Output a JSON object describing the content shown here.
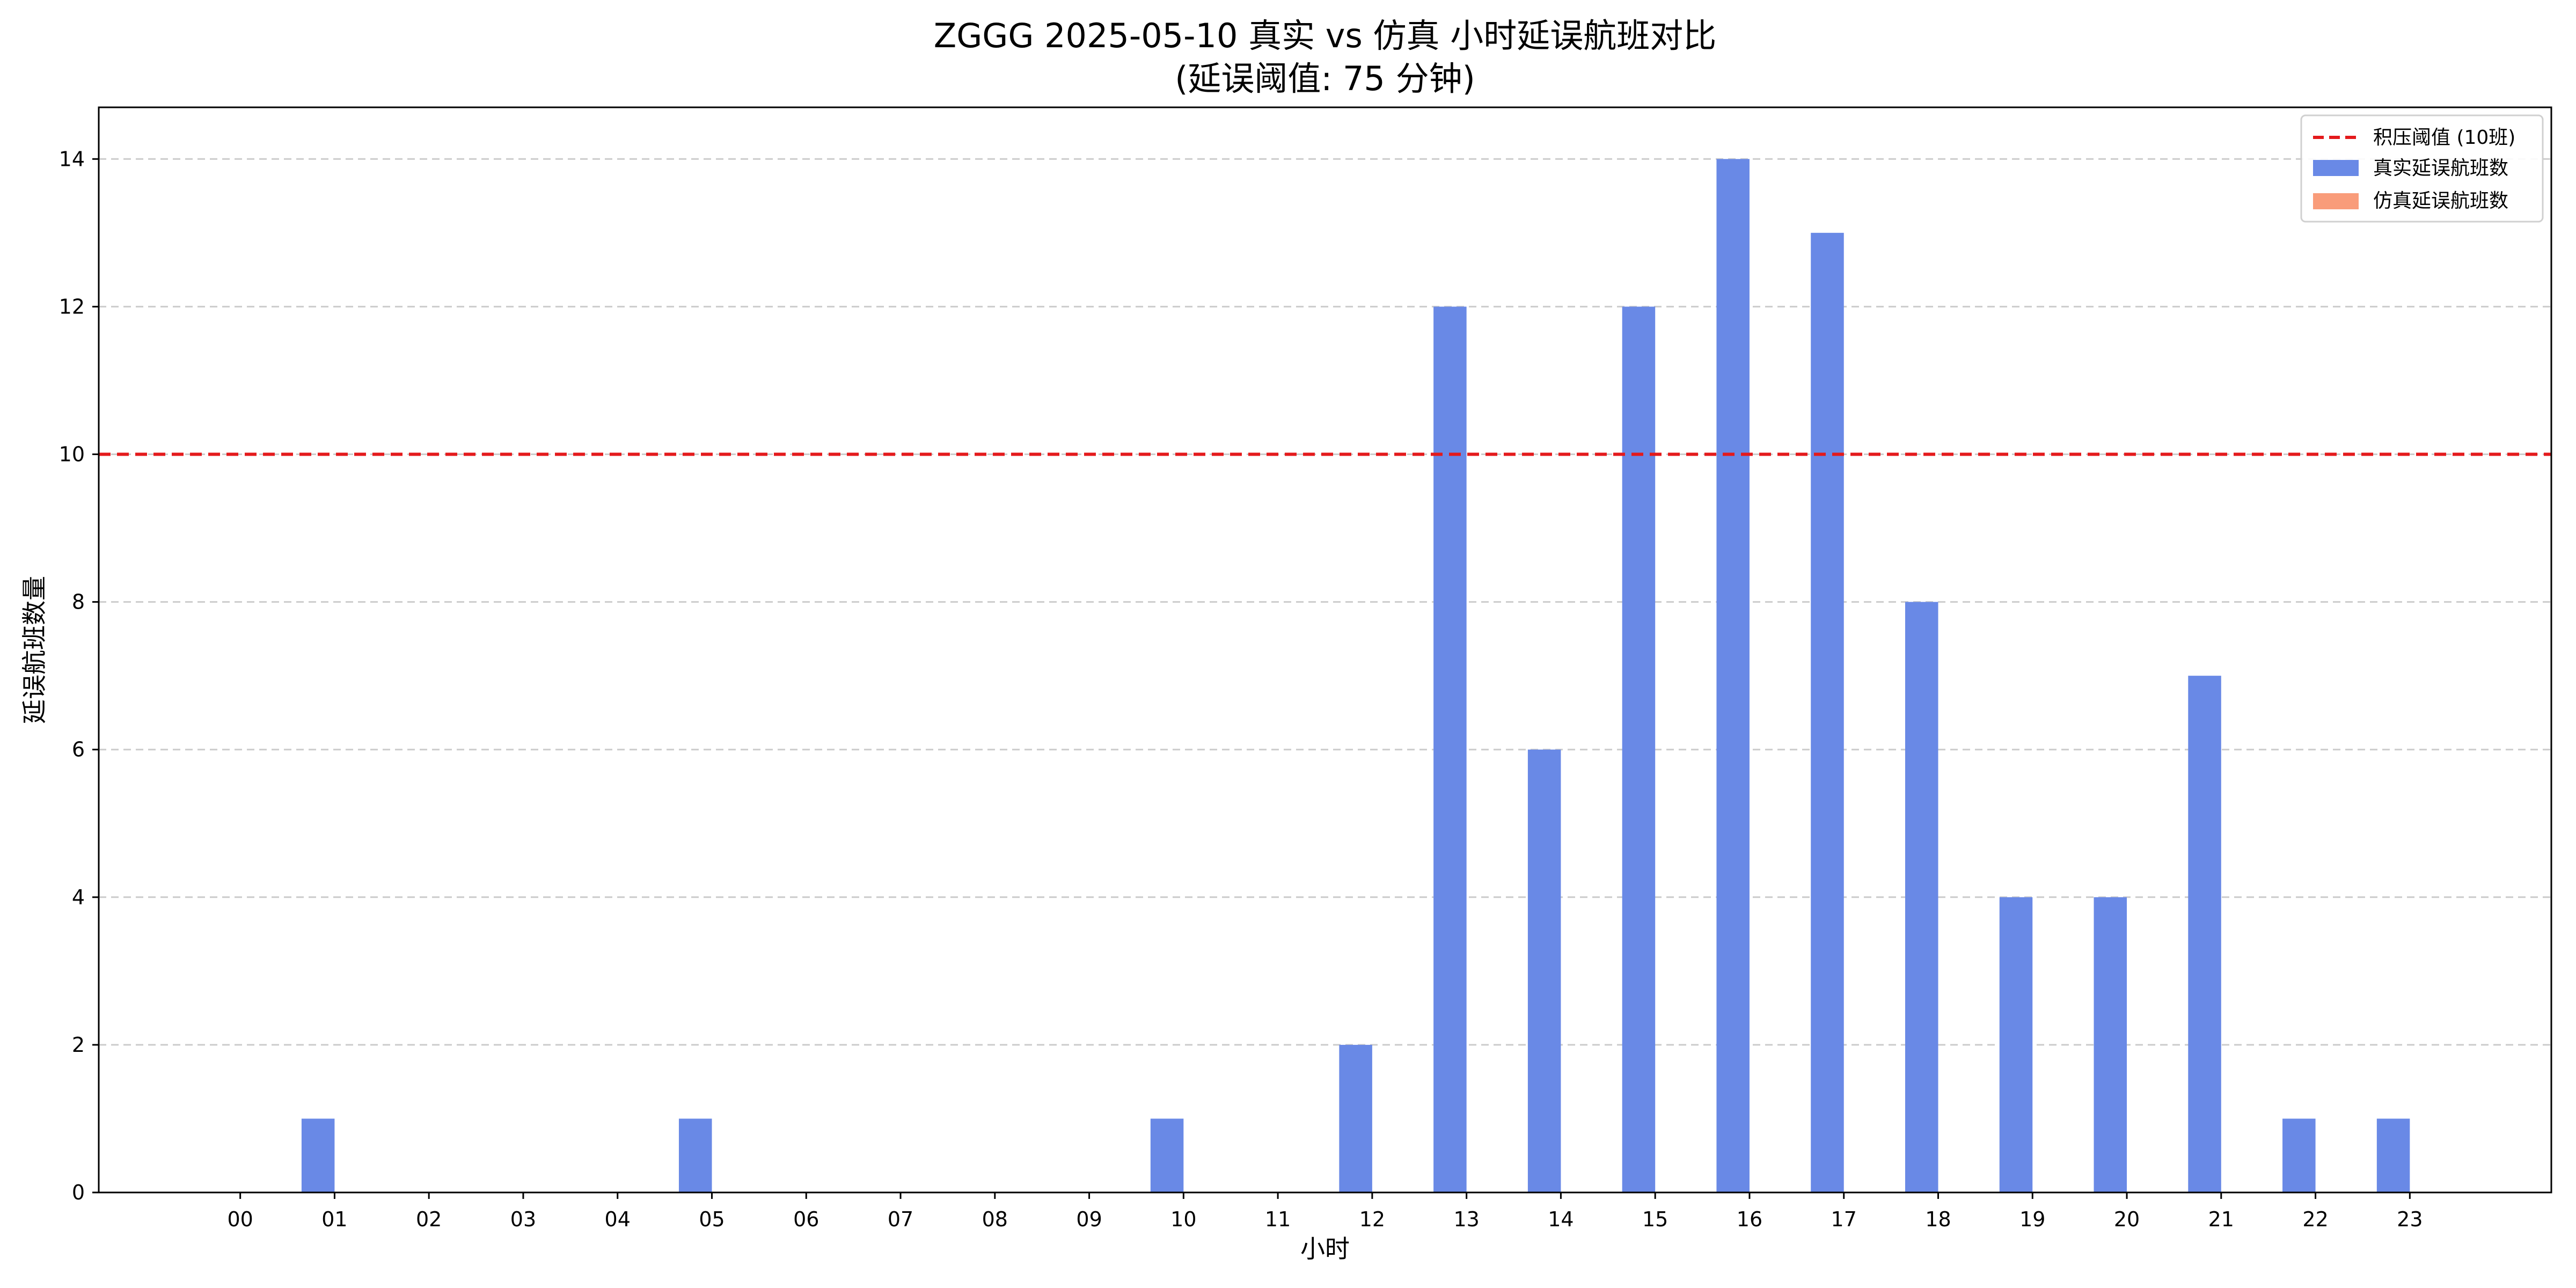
{
  "chart_data": {
    "type": "bar",
    "title": "ZGGG 2025-05-10 真实 vs 仿真 小时延误航班对比",
    "subtitle": "(延误阈值: 75 分钟)",
    "xlabel": "小时",
    "ylabel": "延误航班数量",
    "categories": [
      "00",
      "01",
      "02",
      "03",
      "04",
      "05",
      "06",
      "07",
      "08",
      "09",
      "10",
      "11",
      "12",
      "13",
      "14",
      "15",
      "16",
      "17",
      "18",
      "19",
      "20",
      "21",
      "22",
      "23"
    ],
    "series": [
      {
        "name": "真实延误航班数",
        "color": "#6989E6",
        "values": [
          0,
          1,
          0,
          0,
          0,
          1,
          0,
          0,
          0,
          0,
          1,
          0,
          2,
          12,
          6,
          12,
          14,
          13,
          8,
          4,
          4,
          7,
          1,
          1
        ]
      },
      {
        "name": "仿真延误航班数",
        "color": "#F99C7A",
        "values": [
          0,
          0,
          0,
          0,
          0,
          0,
          0,
          0,
          0,
          0,
          0,
          0,
          0,
          0,
          0,
          0,
          0,
          0,
          0,
          0,
          0,
          0,
          0,
          0
        ]
      }
    ],
    "threshold": {
      "label": "积压阈值 (10班)",
      "value": 10,
      "color": "#E41A1C",
      "style": "dashed"
    },
    "ylim": [
      0,
      14.7
    ],
    "yticks": [
      0,
      2,
      4,
      6,
      8,
      10,
      12,
      14
    ],
    "grid": "horizontal-dashed",
    "legend_position": "top-right"
  }
}
